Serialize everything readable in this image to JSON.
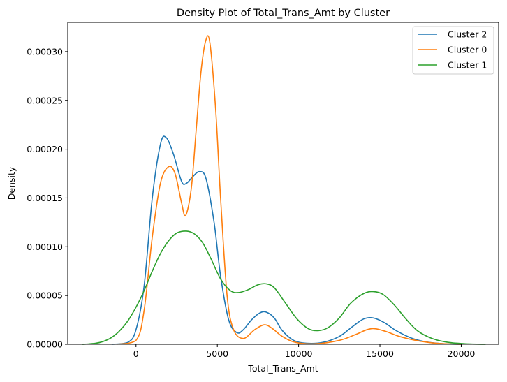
{
  "chart_data": {
    "type": "line",
    "title": "Density Plot of Total_Trans_Amt by Cluster",
    "xlabel": "Total_Trans_Amt",
    "ylabel": "Density",
    "xlim": [
      -4200,
      22300
    ],
    "ylim": [
      0,
      0.00033
    ],
    "x_ticks": [
      0,
      5000,
      10000,
      15000,
      20000
    ],
    "x_tick_labels": [
      "0",
      "5000",
      "10000",
      "15000",
      "20000"
    ],
    "y_ticks": [
      0,
      5e-05,
      0.0001,
      0.00015,
      0.0002,
      0.00025,
      0.0003
    ],
    "y_tick_labels": [
      "0.00000",
      "0.00005",
      "0.00010",
      "0.00015",
      "0.00020",
      "0.00025",
      "0.00030"
    ],
    "grid": false,
    "legend_position": "top-right",
    "series": [
      {
        "name": "Cluster 2",
        "color": "#1f77b4",
        "points": [
          [
            -1500,
            0
          ],
          [
            -500,
            2e-06
          ],
          [
            0,
            1.5e-05
          ],
          [
            500,
            6e-05
          ],
          [
            1000,
            0.00015
          ],
          [
            1500,
            0.000205
          ],
          [
            1850,
            0.000212
          ],
          [
            2300,
            0.000195
          ],
          [
            2800,
            0.000167
          ],
          [
            3100,
            0.000165
          ],
          [
            3500,
            0.000172
          ],
          [
            3900,
            0.000177
          ],
          [
            4300,
            0.00017
          ],
          [
            4800,
            0.000125
          ],
          [
            5200,
            7e-05
          ],
          [
            5700,
            2.5e-05
          ],
          [
            6200,
            1.2e-05
          ],
          [
            6600,
            1.5e-05
          ],
          [
            7100,
            2.5e-05
          ],
          [
            7600,
            3.2e-05
          ],
          [
            8000,
            3.3e-05
          ],
          [
            8500,
            2.7e-05
          ],
          [
            9000,
            1.4e-05
          ],
          [
            9700,
            4e-06
          ],
          [
            10500,
            1e-06
          ],
          [
            11500,
            2e-06
          ],
          [
            12500,
            8e-06
          ],
          [
            13300,
            1.8e-05
          ],
          [
            14000,
            2.6e-05
          ],
          [
            14600,
            2.7e-05
          ],
          [
            15300,
            2.2e-05
          ],
          [
            16000,
            1.4e-05
          ],
          [
            17000,
            6e-06
          ],
          [
            18000,
            2e-06
          ],
          [
            19000,
            5e-07
          ],
          [
            20000,
            0
          ]
        ]
      },
      {
        "name": "Cluster 0",
        "color": "#ff7f0e",
        "points": [
          [
            -1200,
            0
          ],
          [
            0,
            4e-06
          ],
          [
            500,
            3.5e-05
          ],
          [
            1000,
            0.00011
          ],
          [
            1500,
            0.000165
          ],
          [
            2000,
            0.000182
          ],
          [
            2400,
            0.000175
          ],
          [
            2800,
            0.000145
          ],
          [
            3050,
            0.000132
          ],
          [
            3400,
            0.00016
          ],
          [
            3700,
            0.00022
          ],
          [
            4000,
            0.00028
          ],
          [
            4300,
            0.000312
          ],
          [
            4550,
            0.000308
          ],
          [
            4900,
            0.00024
          ],
          [
            5200,
            0.00015
          ],
          [
            5600,
            5e-05
          ],
          [
            6000,
            1.5e-05
          ],
          [
            6600,
            6e-06
          ],
          [
            7300,
            1.5e-05
          ],
          [
            7900,
            2e-05
          ],
          [
            8400,
            1.6e-05
          ],
          [
            9000,
            8e-06
          ],
          [
            9800,
            2e-06
          ],
          [
            11000,
            5e-07
          ],
          [
            12500,
            4e-06
          ],
          [
            13500,
            1e-05
          ],
          [
            14200,
            1.5e-05
          ],
          [
            14700,
            1.6e-05
          ],
          [
            15400,
            1.3e-05
          ],
          [
            16200,
            8e-06
          ],
          [
            17200,
            4e-06
          ],
          [
            18500,
            1e-06
          ],
          [
            20000,
            0
          ]
        ]
      },
      {
        "name": "Cluster 1",
        "color": "#2ca02c",
        "points": [
          [
            -3300,
            0
          ],
          [
            -2500,
            1e-06
          ],
          [
            -2000,
            3e-06
          ],
          [
            -1500,
            7e-06
          ],
          [
            -1000,
            1.4e-05
          ],
          [
            -500,
            2.4e-05
          ],
          [
            0,
            3.8e-05
          ],
          [
            500,
            5.5e-05
          ],
          [
            1000,
            7.5e-05
          ],
          [
            1500,
            9.3e-05
          ],
          [
            2000,
            0.000106
          ],
          [
            2500,
            0.000114
          ],
          [
            3100,
            0.000116
          ],
          [
            3600,
            0.000113
          ],
          [
            4100,
            0.000104
          ],
          [
            4600,
            8.8e-05
          ],
          [
            5200,
            6.7e-05
          ],
          [
            5800,
            5.5e-05
          ],
          [
            6300,
            5.3e-05
          ],
          [
            6900,
            5.6e-05
          ],
          [
            7500,
            6.1e-05
          ],
          [
            8000,
            6.2e-05
          ],
          [
            8500,
            5.8e-05
          ],
          [
            9200,
            4.2e-05
          ],
          [
            9900,
            2.6e-05
          ],
          [
            10600,
            1.6e-05
          ],
          [
            11200,
            1.4e-05
          ],
          [
            11800,
            1.7e-05
          ],
          [
            12500,
            2.7e-05
          ],
          [
            13200,
            4.2e-05
          ],
          [
            14000,
            5.2e-05
          ],
          [
            14600,
            5.4e-05
          ],
          [
            15200,
            5.1e-05
          ],
          [
            15900,
            4e-05
          ],
          [
            16600,
            2.6e-05
          ],
          [
            17300,
            1.4e-05
          ],
          [
            18200,
            6e-06
          ],
          [
            19200,
            2e-06
          ],
          [
            20300,
            5e-07
          ],
          [
            21500,
            0
          ]
        ]
      }
    ]
  }
}
